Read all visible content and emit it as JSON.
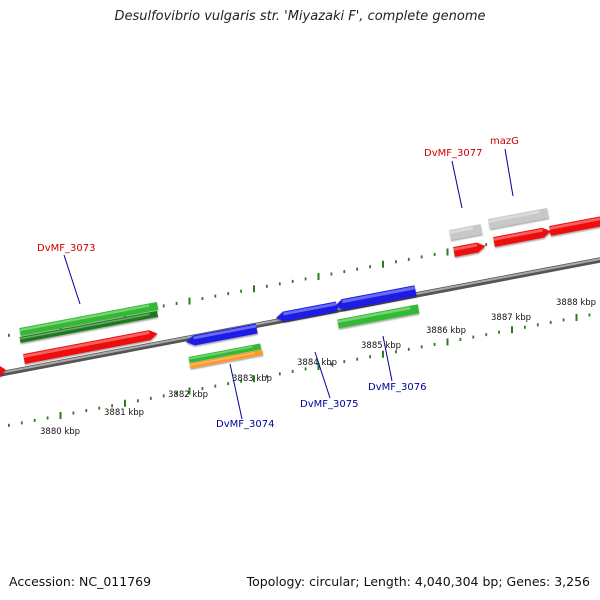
{
  "title": "Desulfovibrio vulgaris str. 'Miyazaki F', complete genome",
  "footer": {
    "accession": "Accession: NC_011769",
    "summary": "Topology: circular; Length: 4,040,304 bp; Genes: 3,256"
  },
  "colors": {
    "backbone": "#777777",
    "tick": "#2d7a1f",
    "gene_red": "#ee1111",
    "gene_green": "#33bb33",
    "gene_darkgreen": "#1f7a1f",
    "gene_blue": "#1a1ae6",
    "gene_orange": "#ff9922",
    "gene_gray": "#c8c8c8",
    "label_red": "#cc0000",
    "label_blue": "#000099"
  },
  "kbp_labels": [
    "3880 kbp",
    "3881 kbp",
    "3882 kbp",
    "3883 kbp",
    "3884 kbp",
    "3885 kbp",
    "3886 kbp",
    "3887 kbp",
    "3888 kbp"
  ],
  "gene_labels": {
    "dvmf_3073": "DvMF_3073",
    "dvmf_3074": "DvMF_3074",
    "dvmf_3075": "DvMF_3075",
    "dvmf_3076": "DvMF_3076",
    "dvmf_3077": "DvMF_3077",
    "mazg": "mazG"
  }
}
